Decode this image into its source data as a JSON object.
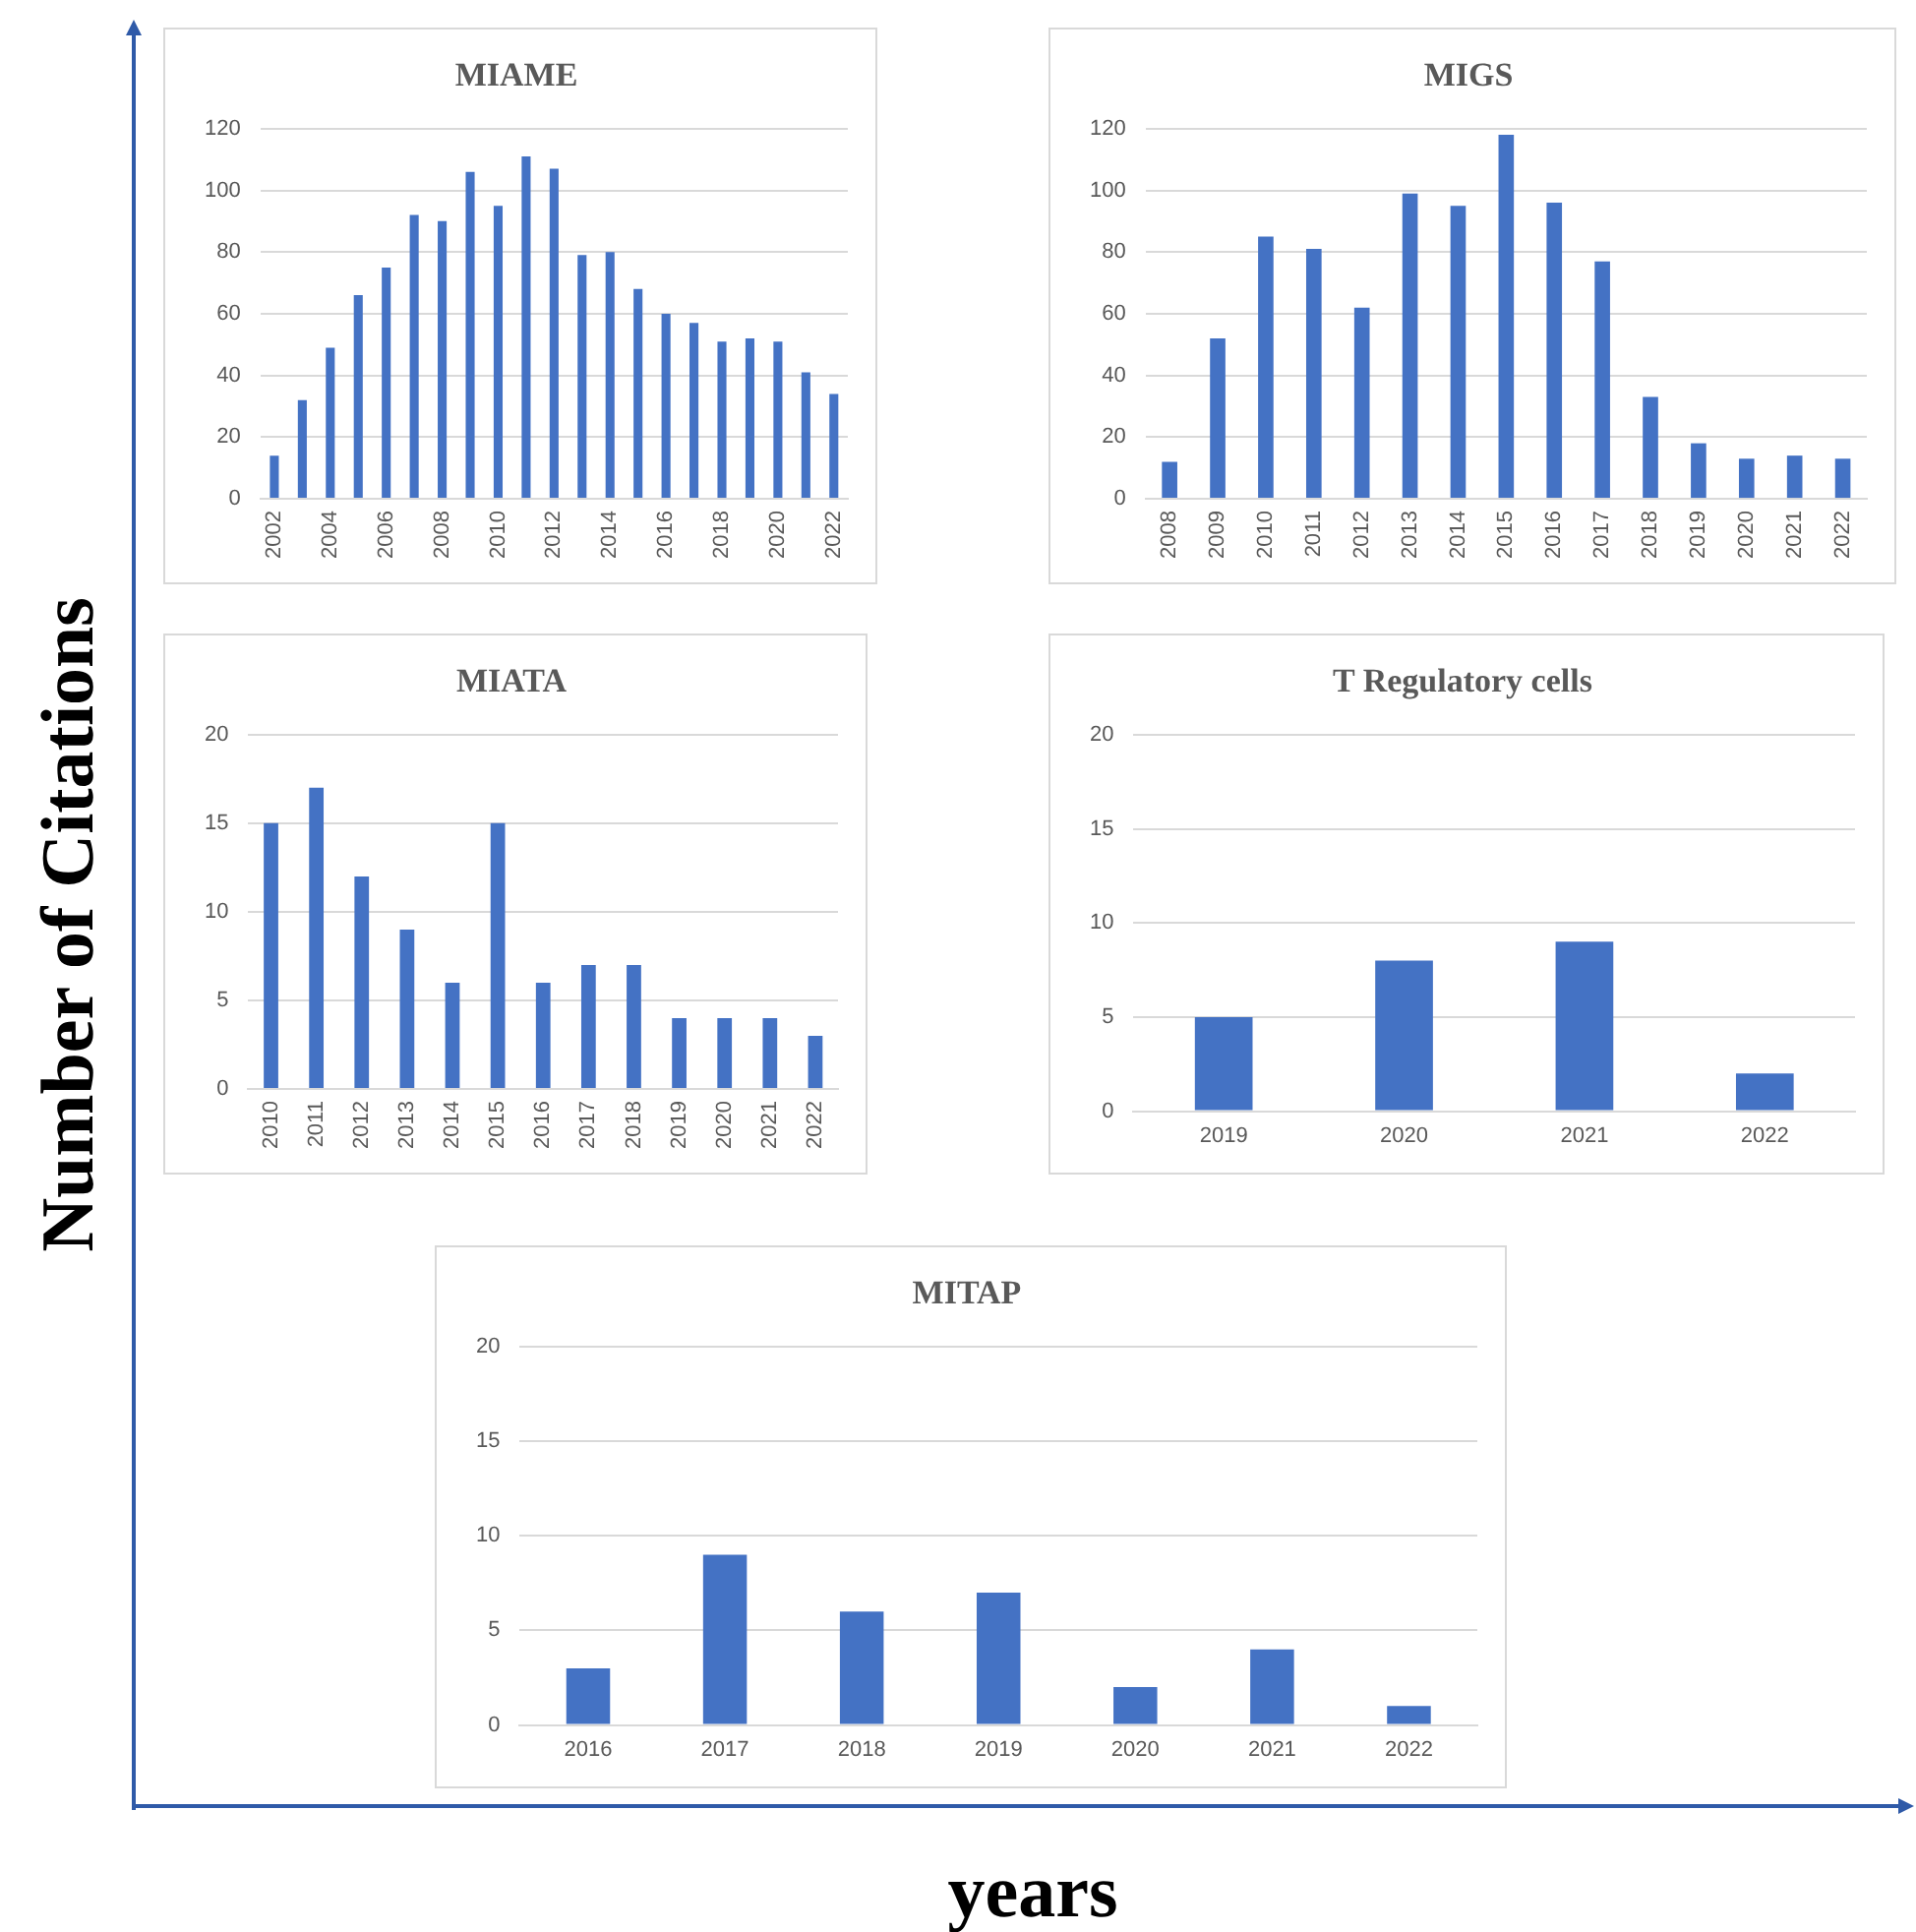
{
  "chart_data": [
    {
      "type": "bar",
      "title": "MIAME",
      "ylabel": "Number of Citations",
      "categories": [
        "2002",
        null,
        "2004",
        null,
        "2006",
        null,
        "2008",
        null,
        "2010",
        null,
        "2012",
        null,
        "2014",
        null,
        "2016",
        null,
        "2018",
        null,
        "2020",
        null,
        "2022"
      ],
      "values": [
        14,
        32,
        49,
        66,
        75,
        92,
        90,
        106,
        95,
        111,
        107,
        79,
        80,
        68,
        60,
        57,
        51,
        52,
        51,
        41,
        34
      ],
      "color": "#4472c4",
      "ylim": [
        0,
        120
      ],
      "yticks": [
        0,
        20,
        40,
        60,
        80,
        100,
        120
      ],
      "grid": "y"
    },
    {
      "type": "bar",
      "title": "MIGS",
      "categories": [
        "2008",
        "2009",
        "2010",
        "2011",
        "2012",
        "2013",
        "2014",
        "2015",
        "2016",
        "2017",
        "2018",
        "2019",
        "2020",
        "2021",
        "2022"
      ],
      "values": [
        12,
        52,
        85,
        81,
        62,
        99,
        95,
        118,
        96,
        77,
        33,
        18,
        13,
        14,
        13
      ],
      "color": "#4472c4",
      "ylim": [
        0,
        120
      ],
      "yticks": [
        0,
        20,
        40,
        60,
        80,
        100,
        120
      ],
      "grid": "y"
    },
    {
      "type": "bar",
      "title": "MIATA",
      "categories": [
        "2010",
        "2011",
        "2012",
        "2013",
        "2014",
        "2015",
        "2016",
        "2017",
        "2018",
        "2019",
        "2020",
        "2021",
        "2022"
      ],
      "values": [
        15,
        17,
        12,
        9,
        6,
        15,
        6,
        7,
        7,
        4,
        4,
        4,
        3
      ],
      "color": "#4472c4",
      "ylim": [
        0,
        20
      ],
      "yticks": [
        0,
        5,
        10,
        15,
        20
      ],
      "grid": "y"
    },
    {
      "type": "bar",
      "title": "T Regulatory cells",
      "categories": [
        "2019",
        "2020",
        "2021",
        "2022"
      ],
      "values": [
        5,
        8,
        9,
        2
      ],
      "color": "#4472c4",
      "ylim": [
        0,
        20
      ],
      "yticks": [
        0,
        5,
        10,
        15,
        20
      ],
      "grid": "y"
    },
    {
      "type": "bar",
      "title": "MITAP",
      "xlabel": "years",
      "categories": [
        "2016",
        "2017",
        "2018",
        "2019",
        "2020",
        "2021",
        "2022"
      ],
      "values": [
        3,
        9,
        6,
        7,
        2,
        4,
        1
      ],
      "color": "#4472c4",
      "ylim": [
        0,
        20
      ],
      "yticks": [
        0,
        5,
        10,
        15,
        20
      ],
      "grid": "y"
    }
  ]
}
